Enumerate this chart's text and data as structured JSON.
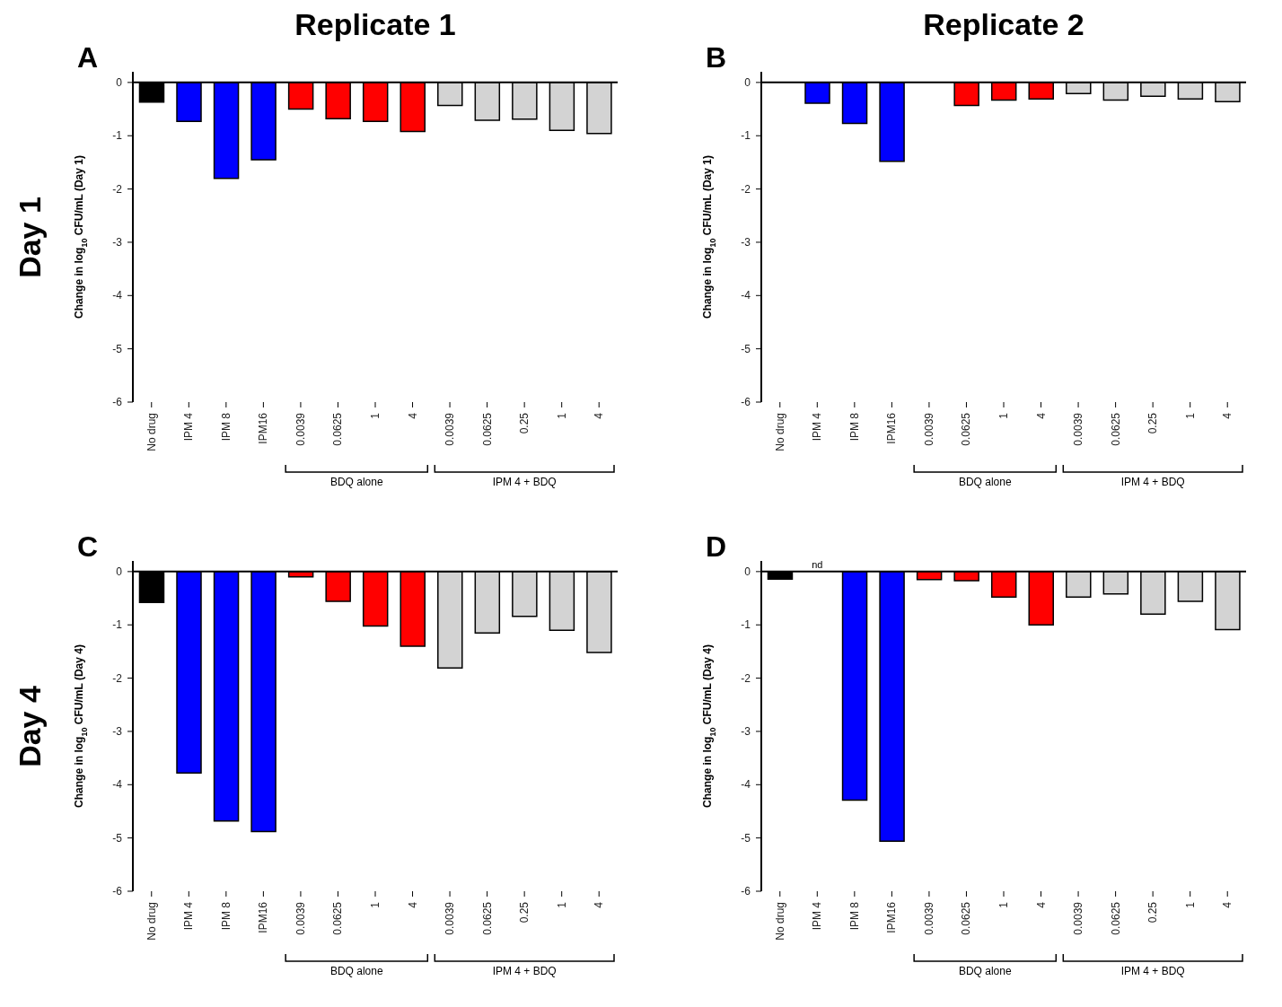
{
  "chart_data": [
    {
      "type": "bar",
      "title": "A",
      "subtitle": "Replicate 1",
      "ylabel": "Change in log$_{10}$ CFU/mL (Day 1)",
      "categories": [
        "No drug",
        "IPM 4",
        "IPM 8",
        "IPM16",
        "0.0039",
        "0.0625",
        "1",
        "4",
        "0.0039",
        "0.0625",
        "0.25",
        "1",
        "4"
      ],
      "values": [
        -0.37,
        -0.73,
        -1.8,
        -1.45,
        -0.5,
        -0.68,
        -0.73,
        -0.92,
        -0.43,
        -0.71,
        -0.69,
        -0.9,
        -0.96
      ],
      "colors": [
        "#000000",
        "#0000ff",
        "#0000ff",
        "#0000ff",
        "#ff0000",
        "#ff0000",
        "#ff0000",
        "#ff0000",
        "#d3d3d3",
        "#d3d3d3",
        "#d3d3d3",
        "#d3d3d3",
        "#d3d3d3"
      ],
      "ylim": [
        -6,
        0.2
      ],
      "yticks": [
        -6,
        -5,
        -4,
        -3,
        -2,
        -1,
        0
      ],
      "annotations": [
        "Day 1",
        "BDQ alone",
        "IPM 4 + BDQ"
      ]
    },
    {
      "type": "bar",
      "title": "B",
      "subtitle": "Replicate 2",
      "ylabel": "Change in log$_{10}$ CFU/mL (Day 1)",
      "categories": [
        "No drug",
        "IPM 4",
        "IPM 8",
        "IPM16",
        "0.0039",
        "0.0625",
        "1",
        "4",
        "0.0039",
        "0.0625",
        "0.25",
        "1",
        "4"
      ],
      "values": [
        null,
        -0.39,
        -0.77,
        -1.48,
        null,
        -0.43,
        -0.33,
        -0.31,
        -0.21,
        -0.33,
        -0.26,
        -0.31,
        -0.36
      ],
      "colors": [
        "#000000",
        "#0000ff",
        "#0000ff",
        "#0000ff",
        "#ff0000",
        "#ff0000",
        "#ff0000",
        "#ff0000",
        "#d3d3d3",
        "#d3d3d3",
        "#d3d3d3",
        "#d3d3d3",
        "#d3d3d3"
      ],
      "ylim": [
        -6,
        0.2
      ],
      "yticks": [
        -6,
        -5,
        -4,
        -3,
        -2,
        -1,
        0
      ],
      "annotations": [
        "BDQ alone",
        "IPM 4 + BDQ"
      ]
    },
    {
      "type": "bar",
      "title": "C",
      "ylabel": "Change in log$_{10}$ CFU/mL (Day 4)",
      "categories": [
        "No drug",
        "IPM 4",
        "IPM 8",
        "IPM16",
        "0.0039",
        "0.0625",
        "1",
        "4",
        "0.0039",
        "0.0625",
        "0.25",
        "1",
        "4"
      ],
      "values": [
        -0.58,
        -3.78,
        -4.68,
        -4.88,
        -0.1,
        -0.56,
        -1.02,
        -1.4,
        -1.81,
        -1.15,
        -0.84,
        -1.1,
        -1.52
      ],
      "colors": [
        "#000000",
        "#0000ff",
        "#0000ff",
        "#0000ff",
        "#ff0000",
        "#ff0000",
        "#ff0000",
        "#ff0000",
        "#d3d3d3",
        "#d3d3d3",
        "#d3d3d3",
        "#d3d3d3",
        "#d3d3d3"
      ],
      "ylim": [
        -6,
        0.2
      ],
      "yticks": [
        -6,
        -5,
        -4,
        -3,
        -2,
        -1,
        0
      ],
      "annotations": [
        "Day 4",
        "BDQ alone",
        "IPM 4 + BDQ"
      ]
    },
    {
      "type": "bar",
      "title": "D",
      "ylabel": "Change in log$_{10}$ CFU/mL (Day 4)",
      "categories": [
        "No drug",
        "IPM 4",
        "IPM 8",
        "IPM16",
        "0.0039",
        "0.0625",
        "1",
        "4",
        "0.0039",
        "0.0625",
        "0.25",
        "1",
        "4"
      ],
      "values": [
        -0.14,
        null,
        -4.29,
        -5.06,
        -0.15,
        -0.17,
        -0.48,
        -1.0,
        -0.48,
        -0.42,
        -0.8,
        -0.56,
        -1.09
      ],
      "colors": [
        "#000000",
        "#0000ff",
        "#0000ff",
        "#0000ff",
        "#ff0000",
        "#ff0000",
        "#ff0000",
        "#ff0000",
        "#d3d3d3",
        "#d3d3d3",
        "#d3d3d3",
        "#d3d3d3",
        "#d3d3d3"
      ],
      "ylim": [
        -6,
        0.2
      ],
      "yticks": [
        -6,
        -5,
        -4,
        -3,
        -2,
        -1,
        0
      ],
      "annotations": [
        "nd",
        "BDQ alone",
        "IPM 4 + BDQ"
      ]
    }
  ]
}
